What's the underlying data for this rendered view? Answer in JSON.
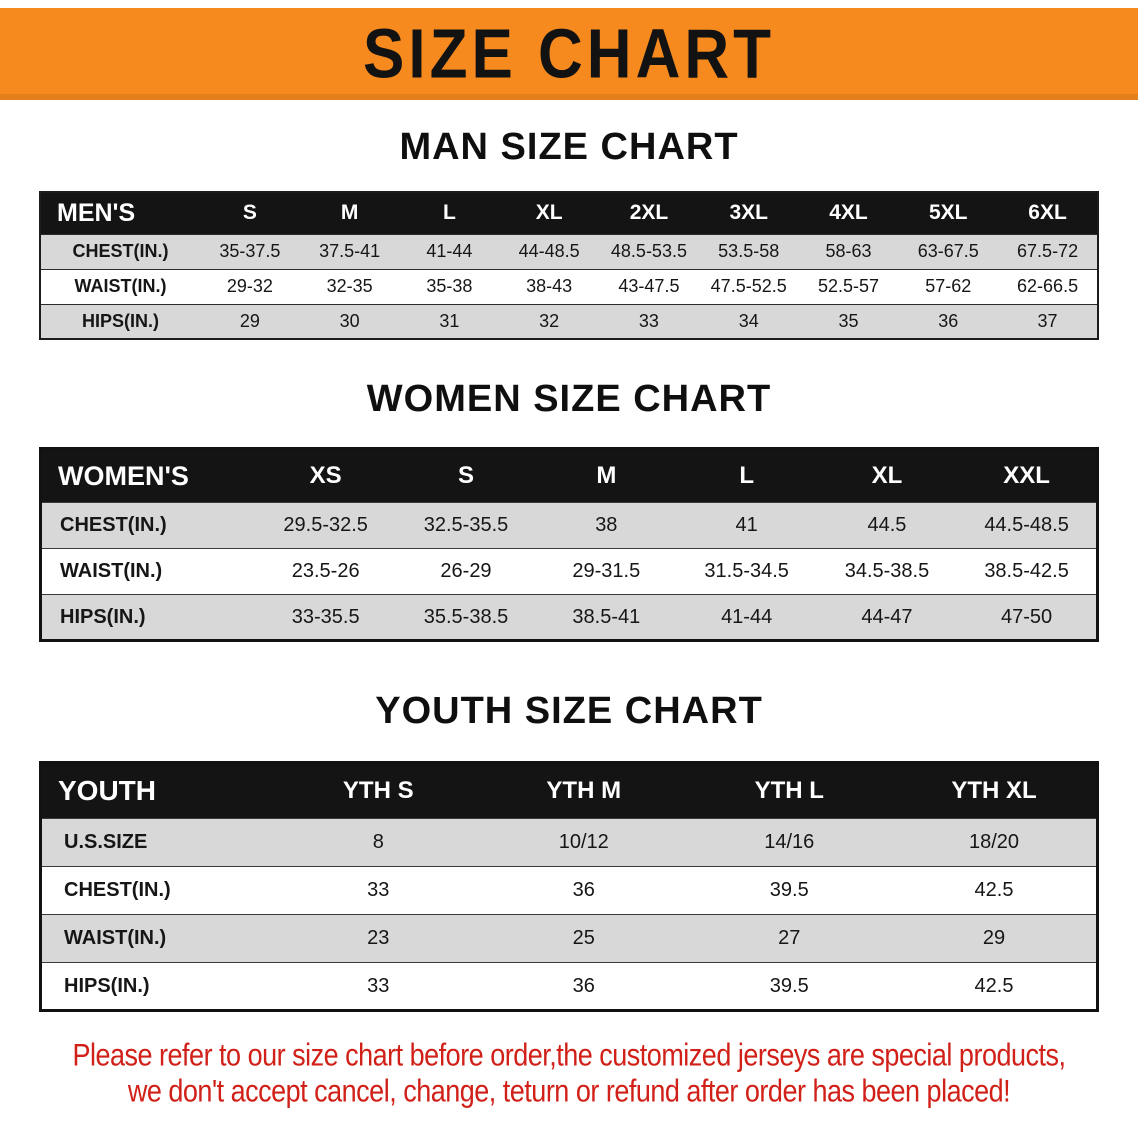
{
  "colors": {
    "banner-bg": "#f68a1e",
    "header-bar": "#141414",
    "stripe": "#d8d8d8",
    "footer-red": "#d02018"
  },
  "banner": {
    "title": "SIZE CHART"
  },
  "sections": [
    {
      "id": "men",
      "heading": "MAN SIZE CHART",
      "table": {
        "header": [
          "MEN'S",
          "S",
          "M",
          "L",
          "XL",
          "2XL",
          "3XL",
          "4XL",
          "5XL",
          "6XL"
        ],
        "rows": [
          [
            "CHEST(IN.)",
            "35-37.5",
            "37.5-41",
            "41-44",
            "44-48.5",
            "48.5-53.5",
            "53.5-58",
            "58-63",
            "63-67.5",
            "67.5-72"
          ],
          [
            "WAIST(IN.)",
            "29-32",
            "32-35",
            "35-38",
            "38-43",
            "43-47.5",
            "47.5-52.5",
            "52.5-57",
            "57-62",
            "62-66.5"
          ],
          [
            "HIPS(IN.)",
            "29",
            "30",
            "31",
            "32",
            "33",
            "34",
            "35",
            "36",
            "37"
          ]
        ]
      }
    },
    {
      "id": "women",
      "heading": "WOMEN SIZE CHART",
      "table": {
        "header": [
          "WOMEN'S",
          "XS",
          "S",
          "M",
          "L",
          "XL",
          "XXL"
        ],
        "rows": [
          [
            "CHEST(IN.)",
            "29.5-32.5",
            "32.5-35.5",
            "38",
            "41",
            "44.5",
            "44.5-48.5"
          ],
          [
            "WAIST(IN.)",
            "23.5-26",
            "26-29",
            "29-31.5",
            "31.5-34.5",
            "34.5-38.5",
            "38.5-42.5"
          ],
          [
            "HIPS(IN.)",
            "33-35.5",
            "35.5-38.5",
            "38.5-41",
            "41-44",
            "44-47",
            "47-50"
          ]
        ]
      }
    },
    {
      "id": "youth",
      "heading": "YOUTH SIZE CHART",
      "table": {
        "header": [
          "YOUTH",
          "YTH S",
          "YTH M",
          "YTH L",
          "YTH XL"
        ],
        "rows": [
          [
            "U.S.SIZE",
            "8",
            "10/12",
            "14/16",
            "18/20"
          ],
          [
            "CHEST(IN.)",
            "33",
            "36",
            "39.5",
            "42.5"
          ],
          [
            "WAIST(IN.)",
            "23",
            "25",
            "27",
            "29"
          ],
          [
            "HIPS(IN.)",
            "33",
            "36",
            "39.5",
            "42.5"
          ]
        ]
      }
    }
  ],
  "footer": {
    "line1": "Please refer to our size chart before order,the customized jerseys are special products,",
    "line2": "we don't accept cancel, change, teturn or refund after order has been placed!"
  }
}
